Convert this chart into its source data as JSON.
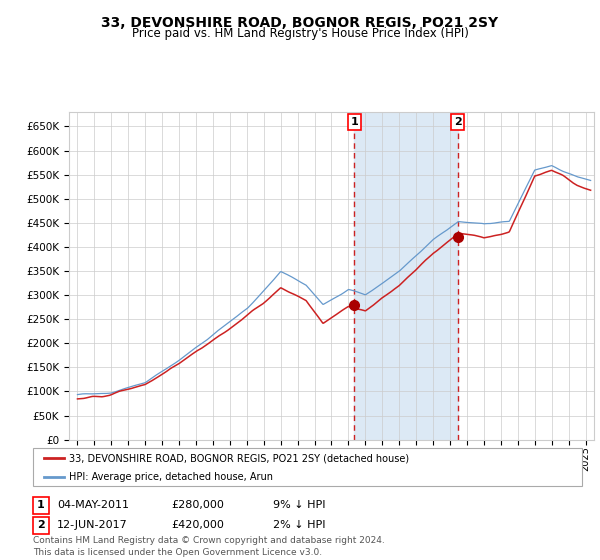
{
  "title": "33, DEVONSHIRE ROAD, BOGNOR REGIS, PO21 2SY",
  "subtitle": "Price paid vs. HM Land Registry's House Price Index (HPI)",
  "hpi_label": "HPI: Average price, detached house, Arun",
  "price_label": "33, DEVONSHIRE ROAD, BOGNOR REGIS, PO21 2SY (detached house)",
  "annotation1_date": "04-MAY-2011",
  "annotation1_price": 280000,
  "annotation1_hpi": "9% ↓ HPI",
  "annotation1_year": 2011.35,
  "annotation2_date": "12-JUN-2017",
  "annotation2_price": 420000,
  "annotation2_hpi": "2% ↓ HPI",
  "annotation2_year": 2017.45,
  "shaded_region_start": 2011.35,
  "shaded_region_end": 2017.45,
  "ylim": [
    0,
    680000
  ],
  "xlim_start": 1994.5,
  "xlim_end": 2025.5,
  "ytick_step": 50000,
  "hpi_color": "#6699cc",
  "price_color": "#cc2222",
  "dot_color": "#aa0000",
  "shaded_color": "#dce9f5",
  "grid_color": "#cccccc",
  "bg_color": "#ffffff",
  "footnote": "Contains HM Land Registry data © Crown copyright and database right 2024.\nThis data is licensed under the Open Government Licence v3.0."
}
